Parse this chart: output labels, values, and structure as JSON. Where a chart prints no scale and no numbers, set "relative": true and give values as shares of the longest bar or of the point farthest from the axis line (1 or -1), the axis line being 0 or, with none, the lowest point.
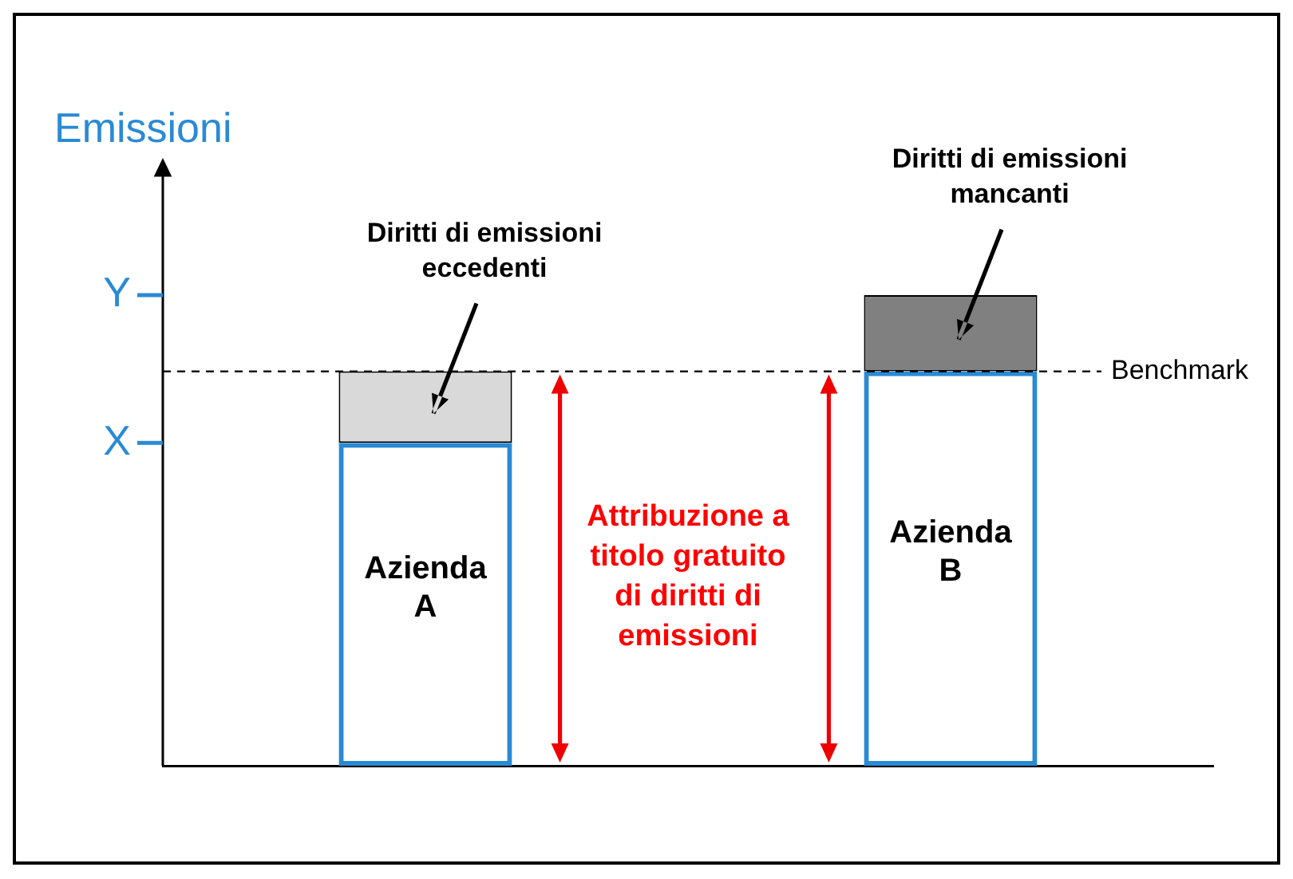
{
  "chart_data": {
    "type": "bar",
    "stacked": true,
    "relative": true,
    "ylabel": "Emissioni",
    "categories": [
      "Azienda A",
      "Azienda B"
    ],
    "series": [
      {
        "color": "#2a8ad4",
        "values": [
          0.686,
          0.838
        ]
      },
      {
        "colors": [
          "#d9d9d9",
          "#808080"
        ],
        "values": [
          0.152,
          0.162
        ]
      }
    ],
    "tick_labels": false,
    "grid": false,
    "legend": false,
    "ref_lines": [
      {
        "axis": "y",
        "value": 0.838,
        "label": "Benchmark",
        "line_style": "dashed",
        "color": "#000000"
      },
      {
        "axis": "y",
        "value": 0.686,
        "label": "X",
        "color": "#2a8ad4"
      },
      {
        "axis": "y",
        "value": 1,
        "label": "Y",
        "color": "#2a8ad4"
      }
    ],
    "annotations": [
      "Diritti di emissioni eccedenti",
      "Diritti di emissioni mancanti",
      "Attribuzione a titolo gratuito di diritti di emissioni"
    ]
  }
}
